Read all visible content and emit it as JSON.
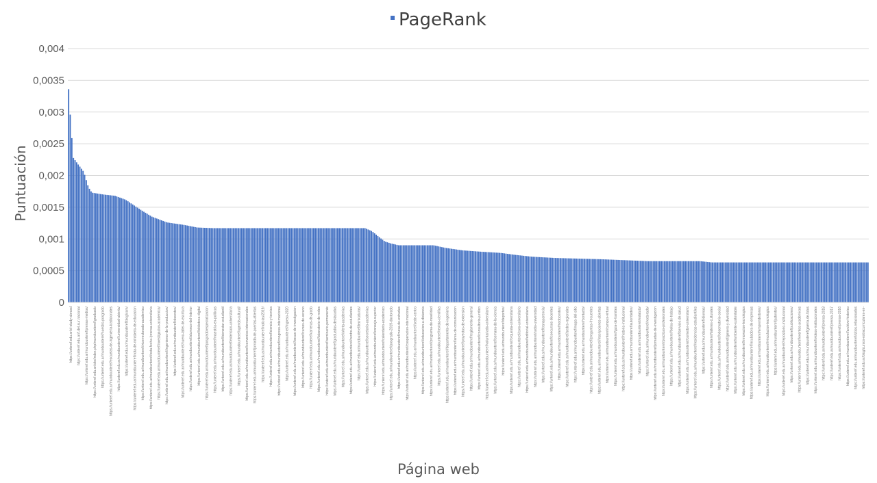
{
  "chart_data": {
    "type": "bar",
    "legend": [
      "PageRank"
    ],
    "legend_position": "top",
    "xlabel": "Página web",
    "ylabel": "Puntuación",
    "ylim": [
      0,
      0.004
    ],
    "yticks": [
      "0",
      "0,0005",
      "0,001",
      "0,0015",
      "0,002",
      "0,0025",
      "0,003",
      "0,0035",
      "0,004"
    ],
    "grid": "horizontal",
    "bar_color": "#4472c4",
    "bar_count": 500,
    "value_profile": [
      [
        0,
        0.00336
      ],
      [
        2,
        0.00278
      ],
      [
        4,
        0.00228
      ],
      [
        8,
        0.00218
      ],
      [
        13,
        0.00206
      ],
      [
        17,
        0.00182
      ],
      [
        20,
        0.00173
      ],
      [
        30,
        0.0017
      ],
      [
        40,
        0.00168
      ],
      [
        49,
        0.00162
      ],
      [
        63,
        0.00145
      ],
      [
        72,
        0.00135
      ],
      [
        85,
        0.00126
      ],
      [
        100,
        0.00122
      ],
      [
        111,
        0.00118
      ],
      [
        125,
        0.00117
      ],
      [
        256,
        0.00117
      ],
      [
        262,
        0.00112
      ],
      [
        268,
        0.00103
      ],
      [
        273,
        0.00096
      ],
      [
        278,
        0.00093
      ],
      [
        285,
        0.0009
      ],
      [
        315,
        0.0009
      ],
      [
        325,
        0.00086
      ],
      [
        340,
        0.00082
      ],
      [
        355,
        0.0008
      ],
      [
        373,
        0.00078
      ],
      [
        385,
        0.00075
      ],
      [
        400,
        0.00072
      ],
      [
        420,
        0.0007
      ],
      [
        460,
        0.00068
      ],
      [
        500,
        0.00065
      ],
      [
        545,
        0.00065
      ],
      [
        555,
        0.00063
      ],
      [
        690,
        0.00063
      ]
    ],
    "x_tick_labels": [
      "https://unteref.edu.ar/el-study-abroad",
      "https://unteref.edu.ar/f-del-sur-nacional",
      "https://unteref.edu.ar/mundounteref/prensa-medios/",
      "https://unteref.edu.ar/site/index.php/mundounteref/graduado",
      "https://unteref.edu.ar/mundounteref/nuestro-posgrado",
      "https://unteref.edu.ar/mundounteref/escuelas-de-ingenieria-tradicionales",
      "https://unteref.edu.ar/mundounteref/universidad-abierta/",
      "https://unteref.edu.ar/mundounteref/blog/com/",
      "https://unteref.edu.ar/mundounteref/nota-de-ministerio-de-educacion",
      "https://unteref.edu.ar/mundounteref/vicerrectorado-academico",
      "https://unteref.edu.ar/mundounteref/nota-fecha-/prensa-universitaria",
      "https://unteref.edu.ar/mundounteref/investigacion-academica/",
      "https://unteref.edu.ar/mundounteref/ingenieros-de-la-produccion/",
      "https://unteref.edu.ar/mundounteref/docentes/",
      "https://unteref.edu.ar/mundounteref/nuevo-taller-de-escritura",
      "https://unteref.edu.ar/mundounteref/alumnos-del-interior",
      "https://unteref.edu.ar/mundounteref/biblioteca-digital",
      "https://unteref.edu.ar/mundounteref/posgrado/especializacion",
      "https://unteref.edu.ar/mundounteref/maestria-en-politicas",
      "https://unteref.edu.ar/mundounteref/bienestar-estudiantil",
      "https://unteref.edu.ar/mundounteref/extension-universitaria",
      "https://unteref.edu.ar/mundounteref/agenda-cultural/",
      "https://unteref.edu.ar/mundounteref/convenios-internacionales",
      "https://unteref.edu.ar/mundounteref/jornada-de-puertas-abiertas",
      "https://unteref.edu.ar/mundounteref/noticias/2019/",
      "https://unteref.edu.ar/mundounteref/ciencia-y-tecnica",
      "https://unteref.edu.ar/mundounteref/congreso-internacional",
      "https://unteref.edu.ar/mundounteref/ingreso-2020",
      "https://unteref.edu.ar/mundounteref/becas-de-investigacion",
      "https://unteref.edu.ar/mundounteref/cursos-de-verano",
      "https://unteref.edu.ar/mundounteref/carreras-de-grado",
      "https://unteref.edu.ar/mundounteref/laboratorio-de-redes",
      "https://unteref.edu.ar/mundounteref/seminario-permanente",
      "https://unteref.edu.ar/mundounteref/graduados-destacados",
      "https://unteref.edu.ar/mundounteref/oferta-academica",
      "https://unteref.edu.ar/mundounteref/centro-de-estudiantes",
      "https://unteref.edu.ar/mundounteref/tecnicaturas/",
      "https://unteref.edu.ar/mundounteref/secretaria-academica",
      "https://unteref.edu.ar/mundounteref/consejo-superior",
      "https://unteref.edu.ar/mundounteref/calendario-academico",
      "https://unteref.edu.ar/mundounteref/posgrado-2019-doctorado",
      "https://unteref.edu.ar/mundounteref/mesa-de-entradas",
      "https://unteref.edu.ar/mundounteref/cooperacion-internacional",
      "https://unteref.edu.ar/mundounteref/sede-centro",
      "https://unteref.edu.ar/mundounteref/educacion-a-distancia",
      "https://unteref.edu.ar/mundounteref/programa-de-movilidad",
      "https://unteref.edu.ar/mundounteref/revista-cientifica",
      "https://unteref.edu.ar/mundounteref/departamento-de-ingenieria",
      "https://unteref.edu.ar/mundounteref/area-de-comunicacion",
      "https://unteref.edu.ar/mundounteref/proyectos-de-extension",
      "https://unteref.edu.ar/mundounteref/reglamento-general",
      "https://unteref.edu.ar/mundounteref/consultorio-juridico",
      "https://unteref.edu.ar/mundounteref/voluntariado-universitario",
      "https://unteref.edu.ar/mundounteref/semana-de-la-ciencia",
      "https://unteref.edu.ar/mundounteref/deportes/",
      "https://unteref.edu.ar/mundounteref/orquesta-universitaria",
      "https://unteref.edu.ar/mundounteref/coro-universitario",
      "https://unteref.edu.ar/mundounteref/editorial-universitaria",
      "https://unteref.edu.ar/mundounteref/radio-universidad",
      "https://unteref.edu.ar/mundounteref/transparencia/",
      "https://unteref.edu.ar/mundounteref/concursos-docentes",
      "https://unteref.edu.ar/mundounteref/nodocentes/",
      "https://unteref.edu.ar/mundounteref/sedes-regionales",
      "https://unteref.edu.ar/mundounteref/mapa-del-sitio",
      "https://unteref.edu.ar/mundounteref/contacto/",
      "https://unteref.edu.ar/mundounteref/preguntas-frecuentes",
      "https://unteref.edu.ar/mundounteref/inscripciones-abiertas",
      "https://unteref.edu.ar/mundounteref/campus-virtual",
      "https://unteref.edu.ar/mundounteref/guia-de-tramites",
      "https://unteref.edu.ar/mundounteref/historia-institucional",
      "https://unteref.edu.ar/mundounteref/autoridades/",
      "https://unteref.edu.ar/mundounteref/estatuto/",
      "https://unteref.edu.ar/mundounteref/rectorado/",
      "https://unteref.edu.ar/mundounteref/jornadas-de-investigacion",
      "https://unteref.edu.ar/mundounteref/practicas-profesionales",
      "https://unteref.edu.ar/mundounteref/bolsa-de-trabajo",
      "https://unteref.edu.ar/mundounteref/servicio-de-salud",
      "https://unteref.edu.ar/mundounteref/comedor-universitario",
      "https://unteref.edu.ar/mundounteref/residencias-estudiantiles",
      "https://unteref.edu.ar/mundounteref/idiomas/",
      "https://unteref.edu.ar/mundounteref/talleres-culturales",
      "https://unteref.edu.ar/mundounteref/observatorio-social",
      "https://unteref.edu.ar/mundounteref/genero-y-diversidad",
      "https://unteref.edu.ar/mundounteref/ambiente-sustentable",
      "https://unteref.edu.ar/mundounteref/innovacion-tecnologica",
      "https://unteref.edu.ar/mundounteref/incubadora-de-empresas",
      "https://unteref.edu.ar/mundounteref/emprendedores/",
      "https://unteref.edu.ar/mundounteref/vinculacion-tecnologica",
      "https://unteref.edu.ar/mundounteref/patentes/",
      "https://unteref.edu.ar/mundounteref/repositorio-institucional",
      "https://unteref.edu.ar/mundounteref/publicaciones/",
      "https://unteref.edu.ar/mundounteref/eventos-academicos",
      "https://unteref.edu.ar/mundounteref/galeria-de-fotos",
      "https://unteref.edu.ar/mundounteref/videos-institucionales",
      "https://unteref.edu.ar/mundounteref/prensa-2018",
      "https://unteref.edu.ar/mundounteref/prensa-2017",
      "https://unteref.edu.ar/mundounteref/prensa-2016",
      "https://unteref.edu.ar/mundounteref/archivo-historico",
      "https://unteref.edu.ar/mundounteref/sitios-relacionados",
      "https://unteref.edu.ar/blog/cursos-extracurriculares-en-"
    ]
  }
}
